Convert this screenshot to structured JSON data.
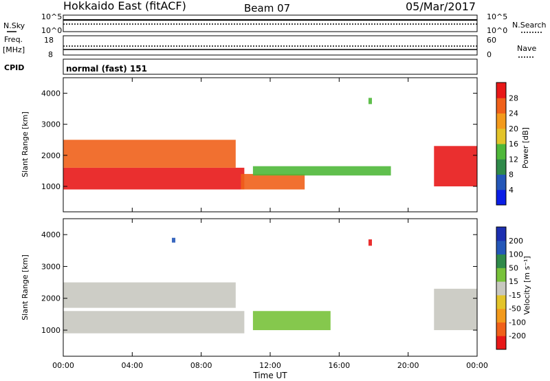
{
  "header": {
    "station": "Hokkaido East (fitACF)",
    "beam": "Beam 07",
    "date": "05/Mar/2017"
  },
  "top_panels": {
    "nsky_label": "N.Sky",
    "nsearch_label": "N.Search",
    "noise_ticks_left": [
      "10^5",
      "10^0"
    ],
    "noise_ticks_right": [
      "10^5",
      "10^0"
    ],
    "freq_label": "Freq.",
    "freq_unit": "[MHz]",
    "freq_ticks": [
      "18",
      "8"
    ],
    "nave_label": "Nave",
    "nave_ticks": [
      "60",
      "0"
    ],
    "cpid_label": "CPID",
    "cpid_text": "normal (fast) 151"
  },
  "chart_data": [
    {
      "type": "heatmap",
      "panel": "power",
      "ylabel": "Slant Range [km]",
      "ylim": [
        180,
        4500
      ],
      "yticks": [
        "1000",
        "2000",
        "3000",
        "4000"
      ],
      "xlim": [
        0,
        24
      ],
      "colorbar_label": "Power [dB]",
      "colorbar_ticks": [
        "28",
        "24",
        "20",
        "16",
        "12",
        "8",
        "4"
      ],
      "colors": [
        "#0a1ee6",
        "#2457b8",
        "#2f8a4a",
        "#4fb83a",
        "#e3c42a",
        "#f39a1c",
        "#f0611a",
        "#e81818"
      ],
      "regions": [
        {
          "t0": 0.0,
          "t1": 10.5,
          "r0": 900,
          "r1": 1600,
          "c": 7
        },
        {
          "t0": 0.0,
          "t1": 10.0,
          "r0": 1600,
          "r1": 2500,
          "c": 6
        },
        {
          "t0": 10.3,
          "t1": 14.0,
          "r0": 900,
          "r1": 1400,
          "c": 6
        },
        {
          "t0": 11.0,
          "t1": 19.0,
          "r0": 1350,
          "r1": 1650,
          "c": 3
        },
        {
          "t0": 21.5,
          "t1": 24.0,
          "r0": 1000,
          "r1": 2300,
          "c": 7
        },
        {
          "t0": 17.7,
          "t1": 17.9,
          "r0": 3650,
          "r1": 3850,
          "c": 3
        }
      ]
    },
    {
      "type": "heatmap",
      "panel": "velocity",
      "ylabel": "Slant Range [km]",
      "ylim": [
        180,
        4500
      ],
      "yticks": [
        "1000",
        "2000",
        "3000",
        "4000"
      ],
      "xlim": [
        0,
        24
      ],
      "xticks": [
        "00:00",
        "04:00",
        "08:00",
        "12:00",
        "16:00",
        "20:00",
        "00:00"
      ],
      "xlabel": "Time UT",
      "colorbar_label": "Velocity [m s⁻¹]",
      "colorbar_ticks": [
        "200",
        "100",
        "50",
        "15",
        "-15",
        "-50",
        "-100",
        "-200"
      ],
      "colors": [
        "#e81818",
        "#f0611a",
        "#f39a1c",
        "#e3c42a",
        "#c8c8c0",
        "#78c23a",
        "#2f8a4a",
        "#2457b8",
        "#1c2fb0"
      ],
      "regions": [
        {
          "t0": 0.0,
          "t1": 10.5,
          "r0": 900,
          "r1": 1600,
          "c": 4
        },
        {
          "t0": 0.0,
          "t1": 10.0,
          "r0": 1700,
          "r1": 2500,
          "c": 4
        },
        {
          "t0": 11.0,
          "t1": 15.5,
          "r0": 1000,
          "r1": 1600,
          "c": 5
        },
        {
          "t0": 21.5,
          "t1": 24.0,
          "r0": 1000,
          "r1": 2300,
          "c": 4
        },
        {
          "t0": 17.7,
          "t1": 17.9,
          "r0": 3650,
          "r1": 3850,
          "c": 0
        },
        {
          "t0": 6.3,
          "t1": 6.5,
          "r0": 3750,
          "r1": 3900,
          "c": 7
        }
      ]
    }
  ]
}
